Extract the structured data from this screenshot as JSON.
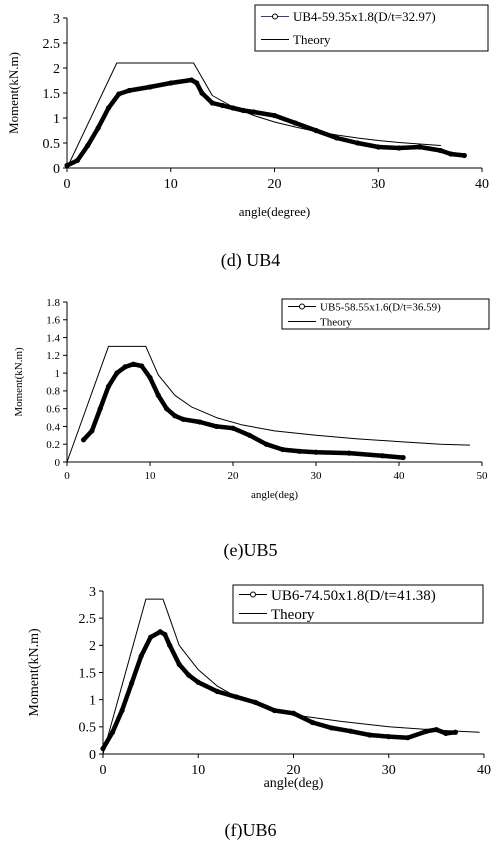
{
  "charts": [
    {
      "caption": "(d) UB4",
      "chart_data": {
        "type": "line",
        "xlabel": "angle(degree)",
        "ylabel": "Moment(kN.m)",
        "xlim": [
          0,
          40
        ],
        "ylim": [
          0,
          3
        ],
        "xticks": [
          "0",
          "10",
          "20",
          "30",
          "40"
        ],
        "yticks": [
          "0",
          "0.5",
          "1",
          "1.5",
          "2",
          "2.5",
          "3"
        ],
        "legend_position": "top-right",
        "grid": false,
        "series": [
          {
            "name": "UB4-59.35x1.8(D/t=32.97)",
            "style": "marker-line",
            "color": "#000000",
            "x": [
              0,
              1,
              2,
              3,
              4,
              5,
              6,
              8,
              10,
              12,
              12.5,
              13,
              14,
              15,
              16,
              17,
              18,
              20,
              22,
              24,
              26,
              28,
              30,
              32,
              34,
              36,
              37,
              38.3
            ],
            "y": [
              0.05,
              0.15,
              0.45,
              0.8,
              1.2,
              1.48,
              1.55,
              1.62,
              1.7,
              1.76,
              1.7,
              1.5,
              1.3,
              1.25,
              1.2,
              1.15,
              1.12,
              1.05,
              0.9,
              0.75,
              0.6,
              0.5,
              0.42,
              0.4,
              0.42,
              0.35,
              0.28,
              0.25
            ]
          },
          {
            "name": "Theory",
            "style": "line",
            "color": "#000000",
            "x": [
              0,
              4.8,
              12.2,
              14,
              16,
              18,
              20,
              22,
              24,
              26,
              28,
              30,
              32,
              34,
              36
            ],
            "y": [
              0,
              2.1,
              2.1,
              1.45,
              1.22,
              1.05,
              0.92,
              0.82,
              0.73,
              0.66,
              0.6,
              0.55,
              0.51,
              0.48,
              0.45
            ]
          }
        ]
      }
    },
    {
      "caption": "(e)UB5",
      "chart_data": {
        "type": "line",
        "xlabel": "angle(deg)",
        "ylabel": "Moment(kN.m)",
        "xlim": [
          0,
          50
        ],
        "ylim": [
          0,
          1.8
        ],
        "xticks": [
          "0",
          "10",
          "20",
          "30",
          "40",
          "50"
        ],
        "yticks": [
          "0",
          "0.2",
          "0.4",
          "0.6",
          "0.8",
          "1",
          "1.2",
          "1.4",
          "1.6",
          "1.8"
        ],
        "legend_position": "top-right",
        "grid": false,
        "series": [
          {
            "name": "UB5-58.55x1.6(D/t=36.59)",
            "style": "marker-line",
            "color": "#000000",
            "x": [
              2,
              3,
              4,
              5,
              6,
              7,
              8,
              9,
              10,
              11,
              12,
              13,
              14,
              16,
              18,
              20,
              22,
              24,
              26,
              28,
              30,
              34,
              38,
              40.5
            ],
            "y": [
              0.25,
              0.35,
              0.6,
              0.85,
              1.0,
              1.07,
              1.1,
              1.08,
              0.95,
              0.75,
              0.6,
              0.52,
              0.48,
              0.45,
              0.4,
              0.38,
              0.3,
              0.2,
              0.14,
              0.12,
              0.11,
              0.1,
              0.07,
              0.05
            ]
          },
          {
            "name": "Theory",
            "style": "line",
            "color": "#000000",
            "x": [
              0,
              5,
              9.5,
              11,
              13,
              15,
              18,
              21,
              25,
              30,
              35,
              40,
              45,
              48.5
            ],
            "y": [
              0,
              1.3,
              1.3,
              0.98,
              0.75,
              0.62,
              0.5,
              0.42,
              0.35,
              0.3,
              0.26,
              0.23,
              0.2,
              0.19
            ]
          }
        ]
      }
    },
    {
      "caption": "(f)UB6",
      "chart_data": {
        "type": "line",
        "xlabel": "angle(deg)",
        "ylabel": "Moment(kN.m)",
        "xlim": [
          0,
          40
        ],
        "ylim": [
          0,
          3
        ],
        "xticks": [
          "0",
          "10",
          "20",
          "30",
          "40"
        ],
        "yticks": [
          "0",
          "0.5",
          "1",
          "1.5",
          "2",
          "2.5",
          "3"
        ],
        "legend_position": "top-right",
        "grid": false,
        "series": [
          {
            "name": "UB6-74.50x1.8(D/t=41.38)",
            "style": "marker-line",
            "color": "#000000",
            "x": [
              0,
              1,
              2,
              3,
              4,
              5,
              6,
              6.5,
              7,
              8,
              9,
              10,
              12,
              14,
              16,
              18,
              20,
              22,
              24,
              26,
              28,
              30,
              32,
              34,
              35,
              36,
              37
            ],
            "y": [
              0.1,
              0.4,
              0.8,
              1.3,
              1.8,
              2.15,
              2.25,
              2.2,
              2.0,
              1.65,
              1.45,
              1.32,
              1.15,
              1.05,
              0.95,
              0.8,
              0.75,
              0.58,
              0.48,
              0.42,
              0.35,
              0.32,
              0.3,
              0.42,
              0.45,
              0.38,
              0.4
            ]
          },
          {
            "name": "Theory",
            "style": "line",
            "color": "#000000",
            "x": [
              0,
              4.5,
              6.3,
              7,
              8,
              10,
              12,
              14,
              17,
              20,
              25,
              30,
              35,
              39.5
            ],
            "y": [
              0,
              2.85,
              2.85,
              2.5,
              2.0,
              1.55,
              1.25,
              1.05,
              0.85,
              0.72,
              0.6,
              0.5,
              0.44,
              0.4
            ]
          }
        ]
      }
    }
  ]
}
